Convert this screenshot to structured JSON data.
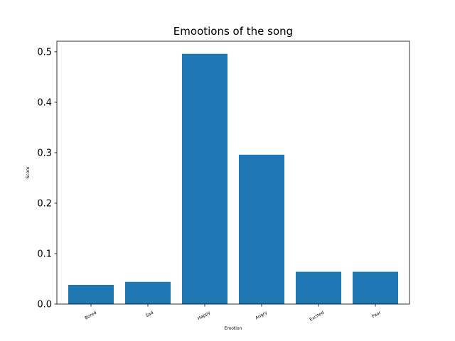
{
  "chart_data": {
    "type": "bar",
    "title": "Emootions of the song",
    "xlabel": "Emotion",
    "ylabel": "Score",
    "categories": [
      "Bored",
      "Sad",
      "Happy",
      "Angry",
      "Excited",
      "Fear"
    ],
    "values": [
      0.038,
      0.044,
      0.496,
      0.296,
      0.064,
      0.064
    ],
    "ylim": [
      0,
      0.521
    ],
    "yticks": [
      "0.0",
      "0.1",
      "0.2",
      "0.3",
      "0.4",
      "0.5"
    ],
    "bar_color": "#1f77b4",
    "grid": false
  }
}
